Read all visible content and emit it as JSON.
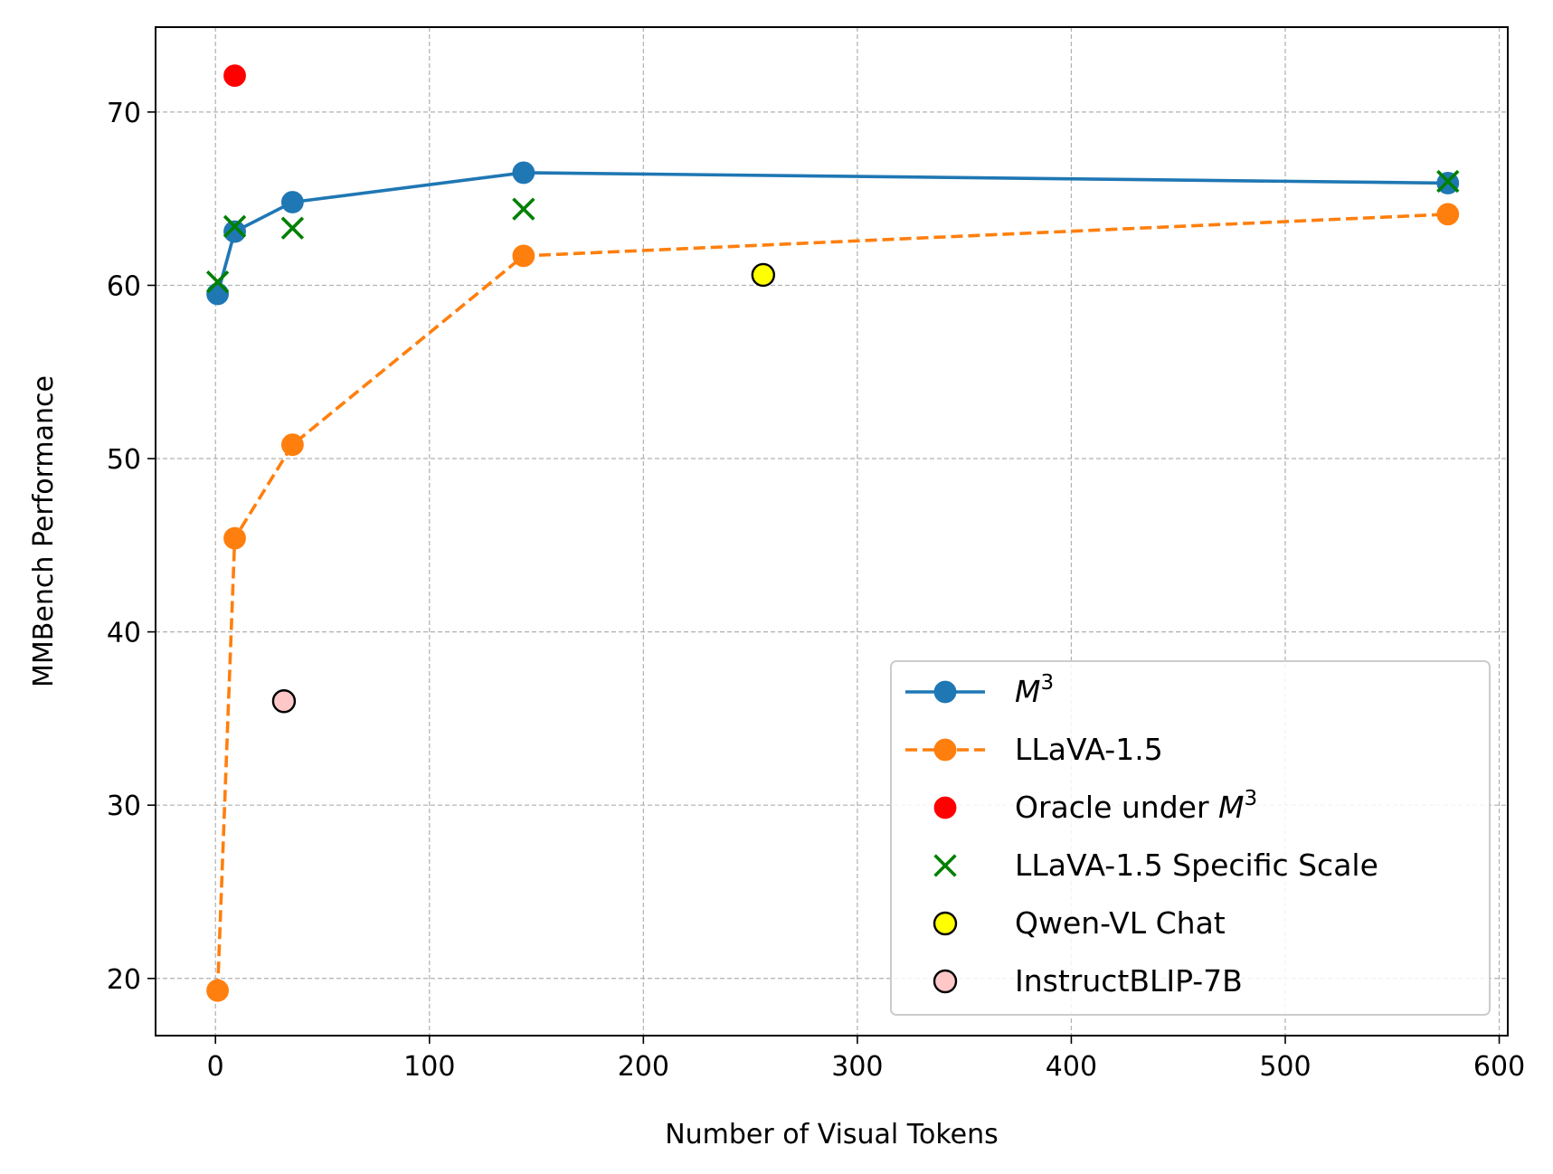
{
  "chart_data": {
    "type": "line",
    "xlabel": "Number of Visual Tokens",
    "ylabel": "MMBench Performance",
    "xlim": [
      -28,
      604
    ],
    "ylim": [
      16.7,
      74.9
    ],
    "xticks": [
      0,
      100,
      200,
      300,
      400,
      500,
      600
    ],
    "yticks": [
      20,
      30,
      40,
      50,
      60,
      70
    ],
    "grid": true,
    "legend_position": "lower-right",
    "series": [
      {
        "name": "M³",
        "label_base": "M",
        "label_sup": "3",
        "kind": "line",
        "line_style": "solid",
        "marker": "circle",
        "color": "#1f77b4",
        "points": [
          [
            1,
            59.5
          ],
          [
            9,
            63.1
          ],
          [
            36,
            64.8
          ],
          [
            144,
            66.5
          ],
          [
            576,
            65.9
          ]
        ]
      },
      {
        "name": "LLaVA-1.5",
        "label": "LLaVA-1.5",
        "kind": "line",
        "line_style": "dashed",
        "marker": "circle",
        "color": "#ff7f0e",
        "points": [
          [
            1,
            19.3
          ],
          [
            9,
            45.4
          ],
          [
            36,
            50.8
          ],
          [
            144,
            61.7
          ],
          [
            576,
            64.1
          ]
        ]
      },
      {
        "name": "Oracle under M³",
        "label_base": "Oracle under ",
        "label_math": "M",
        "label_sup": "3",
        "kind": "scatter",
        "marker": "circle",
        "color": "#ff0000",
        "edge_color": "none",
        "points": [
          [
            9,
            72.1
          ]
        ]
      },
      {
        "name": "LLaVA-1.5 Specific Scale",
        "label": "LLaVA-1.5 Specific Scale",
        "kind": "scatter",
        "marker": "x",
        "color": "#008000",
        "points": [
          [
            1,
            60.2
          ],
          [
            9,
            63.4
          ],
          [
            36,
            63.3
          ],
          [
            144,
            64.4
          ],
          [
            576,
            66.0
          ]
        ]
      },
      {
        "name": "Qwen-VL Chat",
        "label": "Qwen-VL Chat",
        "kind": "scatter",
        "marker": "circle",
        "color": "#ffff00",
        "edge_color": "#000000",
        "points": [
          [
            256,
            60.6
          ]
        ]
      },
      {
        "name": "InstructBLIP-7B",
        "label": "InstructBLIP-7B",
        "kind": "scatter",
        "marker": "circle",
        "color": "#ffc8c8",
        "edge_color": "#000000",
        "points": [
          [
            32,
            36.0
          ]
        ]
      }
    ]
  }
}
